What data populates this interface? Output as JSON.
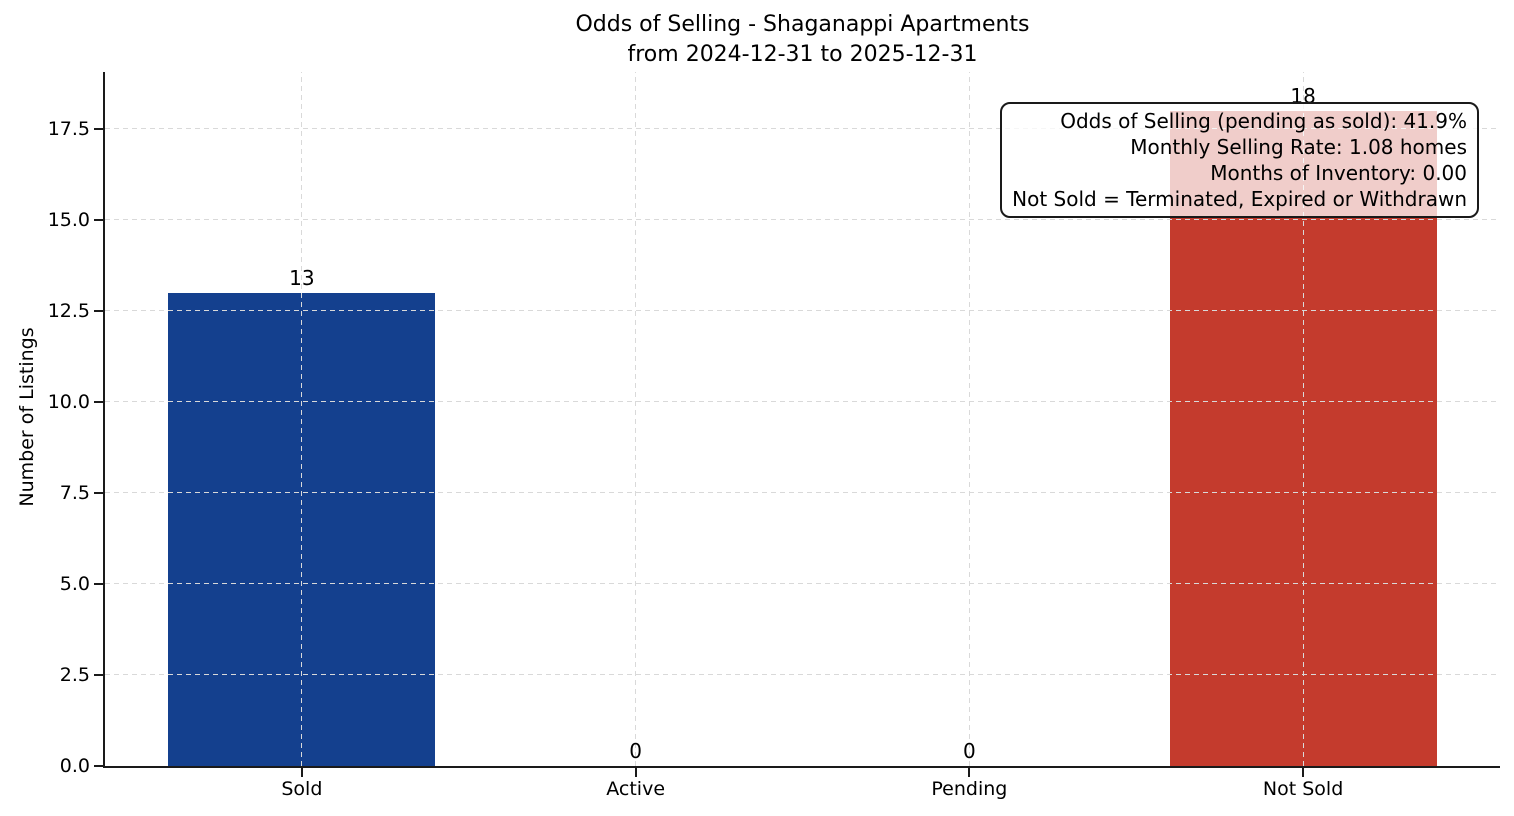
{
  "chart_data": {
    "type": "bar",
    "title": "Odds of Selling - Shaganappi Apartments",
    "subtitle": "from 2024-12-31 to 2025-12-31",
    "categories": [
      "Sold",
      "Active",
      "Pending",
      "Not Sold"
    ],
    "values": [
      13,
      0,
      0,
      18
    ],
    "value_labels": [
      "13",
      "0",
      "0",
      "18"
    ],
    "bar_colors": [
      "#14408E",
      null,
      null,
      "#C43B2D"
    ],
    "xlabel": "",
    "ylabel": "Number of Listings",
    "yticks": [
      0.0,
      2.5,
      5.0,
      7.5,
      10.0,
      12.5,
      15.0,
      17.5
    ],
    "ytick_labels": [
      "0.0",
      "2.5",
      "5.0",
      "7.5",
      "10.0",
      "12.5",
      "15.0",
      "17.5"
    ],
    "ylim": [
      0,
      19.06
    ],
    "xlim": [
      -0.59,
      3.59
    ],
    "bar_width_units": 0.8,
    "grid": {
      "visible": true,
      "style": "dashed",
      "axes": "both",
      "color": "#D9D9D9",
      "above_bars": true
    },
    "legend": "none",
    "axis_color": "#1A1A1A",
    "annotation": {
      "position": "top-right",
      "background": "rgba(255,255,255,0.75)",
      "lines": [
        "Odds of Selling (pending as sold): 41.9%",
        "Monthly Selling Rate: 1.08 homes",
        "Months of Inventory: 0.00",
        "Not Sold = Terminated, Expired or Withdrawn"
      ]
    }
  }
}
